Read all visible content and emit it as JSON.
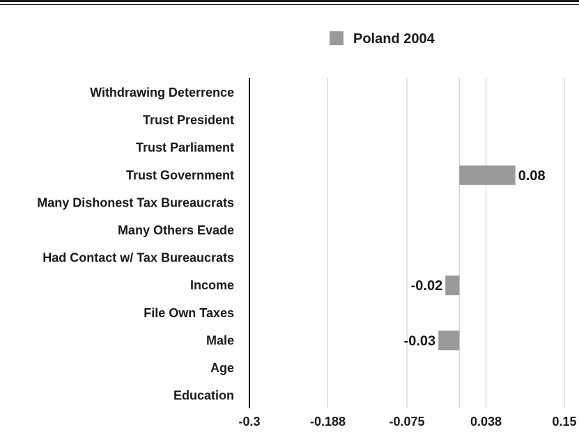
{
  "chart_data": {
    "type": "bar",
    "orientation": "horizontal",
    "categories": [
      "Withdrawing Deterrence",
      "Trust President",
      "Trust Parliament",
      "Trust Government",
      "Many Dishonest Tax Bureaucrats",
      "Many Others Evade",
      "Had Contact w/ Tax Bureaucrats",
      "Income",
      "File Own Taxes",
      "Male",
      "Age",
      "Education"
    ],
    "series": [
      {
        "name": "Poland 2004",
        "color": "#9a9a9a",
        "values": [
          null,
          null,
          null,
          0.08,
          null,
          null,
          null,
          -0.02,
          null,
          -0.03,
          null,
          null
        ],
        "labels": [
          null,
          null,
          null,
          "0.08",
          null,
          null,
          null,
          "-0.02",
          null,
          "-0.03",
          null,
          null
        ]
      }
    ],
    "xlim": [
      -0.3,
      0.15
    ],
    "xticks": [
      -0.3,
      -0.188,
      -0.075,
      0.038,
      0.15
    ],
    "xtick_labels": [
      "-0.3",
      "-0.188",
      "-0.075",
      "0.038",
      "0.15"
    ],
    "baseline": 0,
    "grid": "vertical",
    "legend": "top",
    "xlabel": "",
    "ylabel": ""
  }
}
